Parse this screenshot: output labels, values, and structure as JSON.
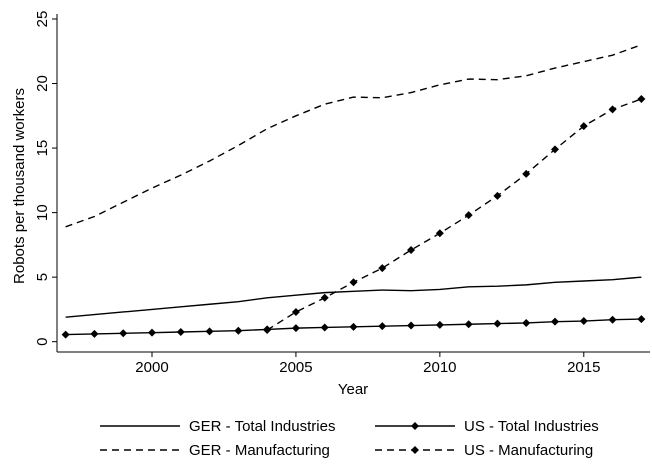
{
  "chart_data": {
    "type": "line",
    "x_label": "Year",
    "y_label": "Robots per thousand workers",
    "x": [
      1997,
      1998,
      1999,
      2000,
      2001,
      2002,
      2003,
      2004,
      2005,
      2006,
      2007,
      2008,
      2009,
      2010,
      2011,
      2012,
      2013,
      2014,
      2015,
      2016,
      2017
    ],
    "series": [
      {
        "name": "GER - Total Industries",
        "color": "#000000",
        "style": "solid",
        "marker": "none",
        "values": [
          1.9,
          2.1,
          2.3,
          2.5,
          2.7,
          2.9,
          3.1,
          3.4,
          3.6,
          3.8,
          3.9,
          4.0,
          3.95,
          4.05,
          4.25,
          4.3,
          4.4,
          4.6,
          4.7,
          4.8,
          5.0
        ]
      },
      {
        "name": "US - Total Industries",
        "color": "#000000",
        "style": "solid",
        "marker": "diamond",
        "values": [
          0.55,
          0.6,
          0.65,
          0.7,
          0.75,
          0.8,
          0.85,
          0.95,
          1.05,
          1.1,
          1.15,
          1.2,
          1.25,
          1.3,
          1.35,
          1.4,
          1.45,
          1.55,
          1.6,
          1.7,
          1.75
        ]
      },
      {
        "name": "GER - Manufacturing",
        "color": "#000000",
        "style": "dashed",
        "marker": "none",
        "values": [
          8.9,
          9.7,
          10.8,
          11.9,
          12.9,
          14.0,
          15.2,
          16.5,
          17.5,
          18.4,
          18.95,
          18.9,
          19.3,
          19.9,
          20.35,
          20.3,
          20.6,
          21.2,
          21.7,
          22.2,
          23.0
        ]
      },
      {
        "name": "US - Manufacturing",
        "color": "#000000",
        "style": "dashed",
        "marker": "diamond",
        "values": [
          null,
          null,
          null,
          null,
          null,
          null,
          null,
          0.9,
          2.3,
          3.4,
          4.6,
          5.7,
          7.1,
          8.4,
          9.8,
          11.3,
          13.0,
          14.9,
          16.7,
          18.0,
          18.8
        ]
      }
    ],
    "xlim": [
      1996.7,
      2017.3
    ],
    "xticks": [
      2000,
      2005,
      2010,
      2015
    ],
    "ylim": [
      -0.8,
      25
    ],
    "yticks": [
      0,
      5,
      10,
      15,
      20,
      25
    ],
    "legend": "bottom"
  }
}
